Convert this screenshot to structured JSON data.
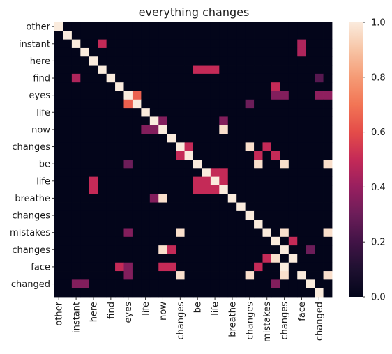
{
  "chart_data": {
    "type": "heatmap",
    "title": "everything changes",
    "row_labels": [
      "other",
      "",
      "instant",
      "",
      "here",
      "",
      "find",
      "",
      "eyes",
      "",
      "life",
      "",
      "now",
      "",
      "changes",
      "",
      "be",
      "",
      "life",
      "",
      "breathe",
      "",
      "changes",
      "",
      "mistakes",
      "",
      "changes",
      "",
      "face",
      "",
      "changed",
      ""
    ],
    "col_labels": [
      "other",
      "",
      "instant",
      "",
      "here",
      "",
      "find",
      "",
      "eyes",
      "",
      "life",
      "",
      "now",
      "",
      "changes",
      "",
      "be",
      "",
      "life",
      "",
      "breathe",
      "",
      "changes",
      "",
      "mistakes",
      "",
      "changes",
      "",
      "face",
      "",
      "changed",
      ""
    ],
    "colorbar": {
      "min": 0.0,
      "max": 1.0,
      "ticks": [
        0.0,
        0.2,
        0.4,
        0.6,
        0.8,
        1.0
      ],
      "tick_labels": [
        "0.0",
        "0.2",
        "0.4",
        "0.6",
        "0.8",
        "1.0"
      ],
      "colormap": "rocket"
    },
    "values": [
      [
        1,
        0,
        0,
        0,
        0,
        0,
        0,
        0,
        0,
        0,
        0,
        0,
        0,
        0,
        0,
        0,
        0,
        0,
        0,
        0,
        0,
        0,
        0,
        0,
        0,
        0,
        0,
        0,
        0,
        0,
        0,
        0
      ],
      [
        0,
        1,
        0,
        0,
        0,
        0,
        0,
        0,
        0,
        0,
        0,
        0,
        0,
        0,
        0,
        0,
        0,
        0,
        0,
        0,
        0,
        0,
        0,
        0,
        0,
        0,
        0,
        0,
        0,
        0,
        0,
        0
      ],
      [
        0,
        0,
        1,
        0,
        0,
        0.5,
        0,
        0,
        0,
        0,
        0,
        0,
        0,
        0,
        0,
        0,
        0,
        0,
        0,
        0,
        0,
        0,
        0,
        0,
        0,
        0,
        0,
        0,
        0.45,
        0,
        0,
        0
      ],
      [
        0,
        0,
        0,
        1,
        0,
        0,
        0,
        0,
        0,
        0,
        0,
        0,
        0,
        0,
        0,
        0,
        0,
        0,
        0,
        0,
        0,
        0,
        0,
        0,
        0,
        0,
        0,
        0,
        0.45,
        0,
        0,
        0
      ],
      [
        0,
        0,
        0,
        0,
        1,
        0,
        0,
        0,
        0,
        0,
        0,
        0,
        0,
        0,
        0,
        0,
        0,
        0,
        0,
        0,
        0,
        0,
        0,
        0,
        0,
        0,
        0,
        0,
        0,
        0,
        0,
        0
      ],
      [
        0,
        0,
        0,
        0,
        0,
        1,
        0,
        0,
        0,
        0,
        0,
        0,
        0,
        0,
        0,
        0,
        0.5,
        0.5,
        0.5,
        0,
        0,
        0,
        0,
        0,
        0,
        0,
        0,
        0,
        0,
        0,
        0,
        0
      ],
      [
        0,
        0,
        0.45,
        0,
        0,
        0,
        1,
        0,
        0,
        0,
        0,
        0,
        0,
        0,
        0,
        0,
        0,
        0,
        0,
        0,
        0,
        0,
        0,
        0,
        0,
        0,
        0,
        0,
        0,
        0,
        0.25,
        0
      ],
      [
        0,
        0,
        0,
        0,
        0,
        0,
        0,
        1,
        0,
        0,
        0,
        0,
        0,
        0,
        0,
        0,
        0,
        0,
        0,
        0,
        0,
        0,
        0,
        0,
        0,
        0.5,
        0,
        0,
        0,
        0,
        0,
        0
      ],
      [
        0,
        0,
        0,
        0,
        0,
        0,
        0,
        0,
        1,
        0.65,
        0,
        0,
        0,
        0,
        0,
        0,
        0,
        0,
        0,
        0,
        0,
        0,
        0,
        0,
        0,
        0.35,
        0.35,
        0,
        0,
        0,
        0.38,
        0.38
      ],
      [
        0,
        0,
        0,
        0,
        0,
        0,
        0,
        0,
        0.65,
        1,
        0,
        0,
        0,
        0,
        0,
        0,
        0,
        0,
        0,
        0,
        0,
        0,
        0.3,
        0,
        0,
        0,
        0,
        0,
        0,
        0,
        0,
        0
      ],
      [
        0,
        0,
        0,
        0,
        0,
        0,
        0,
        0,
        0,
        0,
        1,
        0,
        0,
        0,
        0,
        0,
        0,
        0,
        0,
        0,
        0,
        0,
        0,
        0,
        0,
        0,
        0,
        0,
        0,
        0,
        0,
        0
      ],
      [
        0,
        0,
        0,
        0,
        0,
        0,
        0,
        0,
        0,
        0,
        0,
        1,
        0.35,
        0,
        0,
        0,
        0,
        0,
        0,
        0.35,
        0,
        0,
        0,
        0,
        0,
        0,
        0,
        0,
        0,
        0,
        0,
        0
      ],
      [
        0,
        0,
        0,
        0,
        0,
        0,
        0,
        0,
        0,
        0,
        0.35,
        0.35,
        1,
        0,
        0,
        0,
        0,
        0,
        0,
        0.97,
        0,
        0,
        0,
        0,
        0,
        0,
        0,
        0,
        0,
        0,
        0,
        0
      ],
      [
        0,
        0,
        0,
        0,
        0,
        0,
        0,
        0,
        0,
        0,
        0,
        0,
        0,
        1,
        0,
        0,
        0,
        0,
        0,
        0,
        0,
        0,
        0,
        0,
        0,
        0,
        0,
        0,
        0,
        0,
        0,
        0
      ],
      [
        0,
        0,
        0,
        0,
        0,
        0,
        0,
        0,
        0,
        0,
        0,
        0,
        0,
        0,
        1,
        0.5,
        0,
        0,
        0,
        0,
        0,
        0,
        0.97,
        0,
        0.5,
        0,
        0,
        0,
        0,
        0,
        0,
        0
      ],
      [
        0,
        0,
        0,
        0,
        0,
        0,
        0,
        0,
        0,
        0,
        0,
        0,
        0,
        0,
        0.5,
        1,
        0,
        0,
        0,
        0,
        0,
        0,
        0,
        0.5,
        0,
        0.5,
        0,
        0,
        0,
        0,
        0,
        0
      ],
      [
        0,
        0,
        0,
        0,
        0,
        0,
        0,
        0,
        0.3,
        0,
        0,
        0,
        0,
        0,
        0,
        0,
        1,
        0,
        0,
        0,
        0,
        0,
        0,
        0.97,
        0,
        0,
        0.97,
        0,
        0,
        0,
        0,
        0.97
      ],
      [
        0,
        0,
        0,
        0,
        0,
        0,
        0,
        0,
        0,
        0,
        0,
        0,
        0,
        0,
        0,
        0,
        0,
        1,
        0.5,
        0.5,
        0,
        0,
        0,
        0,
        0,
        0,
        0,
        0,
        0,
        0,
        0,
        0
      ],
      [
        0,
        0,
        0,
        0,
        0.5,
        0,
        0,
        0,
        0,
        0,
        0,
        0,
        0,
        0,
        0,
        0,
        0.5,
        0.5,
        1,
        0.5,
        0,
        0,
        0,
        0,
        0,
        0,
        0,
        0,
        0,
        0,
        0,
        0
      ],
      [
        0,
        0,
        0,
        0,
        0.5,
        0,
        0,
        0,
        0,
        0,
        0,
        0,
        0,
        0,
        0,
        0,
        0.5,
        0.5,
        0.5,
        1,
        0,
        0,
        0,
        0,
        0,
        0,
        0,
        0,
        0,
        0,
        0,
        0
      ],
      [
        0,
        0,
        0,
        0,
        0,
        0,
        0,
        0,
        0,
        0,
        0,
        0.35,
        0.97,
        0,
        0,
        0,
        0,
        0,
        0,
        0,
        1,
        0,
        0,
        0,
        0,
        0,
        0,
        0,
        0,
        0,
        0,
        0
      ],
      [
        0,
        0,
        0,
        0,
        0,
        0,
        0,
        0,
        0,
        0,
        0,
        0,
        0,
        0,
        0,
        0,
        0,
        0,
        0,
        0,
        0,
        1,
        0,
        0,
        0,
        0,
        0,
        0,
        0,
        0,
        0,
        0
      ],
      [
        0,
        0,
        0,
        0,
        0,
        0,
        0,
        0,
        0,
        0,
        0,
        0,
        0,
        0,
        0,
        0,
        0,
        0,
        0,
        0,
        0,
        0,
        1,
        0,
        0,
        0,
        0,
        0,
        0,
        0,
        0,
        0
      ],
      [
        0,
        0,
        0,
        0,
        0,
        0,
        0,
        0,
        0,
        0,
        0,
        0,
        0,
        0,
        0,
        0,
        0,
        0,
        0,
        0,
        0,
        0,
        0,
        1,
        0,
        0,
        0,
        0,
        0,
        0,
        0,
        0
      ],
      [
        0,
        0,
        0,
        0,
        0,
        0,
        0,
        0,
        0.35,
        0,
        0,
        0,
        0,
        0,
        0.97,
        0,
        0,
        0,
        0,
        0,
        0,
        0,
        0,
        0,
        1,
        0,
        0.97,
        0,
        0,
        0,
        0,
        0.97
      ],
      [
        0,
        0,
        0,
        0,
        0,
        0,
        0,
        0,
        0,
        0,
        0,
        0,
        0,
        0,
        0,
        0,
        0,
        0,
        0,
        0,
        0,
        0,
        0,
        0,
        0,
        1,
        0,
        0.5,
        0,
        0,
        0,
        0
      ],
      [
        0,
        0,
        0,
        0,
        0,
        0,
        0,
        0,
        0,
        0,
        0,
        0,
        0.97,
        0.5,
        0,
        0,
        0,
        0,
        0,
        0,
        0,
        0,
        0,
        0,
        0,
        0,
        1,
        0,
        0,
        0.3,
        0,
        0
      ],
      [
        0,
        0,
        0,
        0,
        0,
        0,
        0,
        0,
        0,
        0,
        0,
        0,
        0,
        0,
        0,
        0,
        0,
        0,
        0,
        0,
        0,
        0,
        0,
        0,
        0.5,
        0.97,
        0,
        1,
        0,
        0,
        0,
        0
      ],
      [
        0,
        0,
        0,
        0,
        0,
        0,
        0,
        0.5,
        0.35,
        0,
        0,
        0,
        0.5,
        0.5,
        0,
        0,
        0,
        0,
        0,
        0,
        0,
        0,
        0,
        0.5,
        0,
        0,
        1,
        0,
        0,
        0,
        0,
        0
      ],
      [
        0,
        0,
        0,
        0,
        0,
        0,
        0,
        0,
        0.35,
        0,
        0,
        0,
        0,
        0,
        0.97,
        0,
        0,
        0,
        0,
        0,
        0,
        0,
        0.97,
        0,
        0,
        0,
        0.97,
        0,
        1,
        0,
        0,
        0.97
      ],
      [
        0,
        0,
        0.35,
        0.35,
        0,
        0,
        0,
        0,
        0,
        0,
        0,
        0,
        0,
        0,
        0,
        0,
        0,
        0,
        0,
        0,
        0,
        0,
        0,
        0,
        0,
        0.35,
        0,
        0,
        0,
        1,
        0,
        0
      ],
      [
        0,
        0,
        0,
        0,
        0,
        0,
        0,
        0,
        0,
        0,
        0,
        0,
        0,
        0,
        0,
        0,
        0,
        0,
        0,
        0,
        0,
        0,
        0,
        0,
        0,
        0,
        0,
        0,
        0,
        0,
        1,
        0
      ]
    ]
  }
}
